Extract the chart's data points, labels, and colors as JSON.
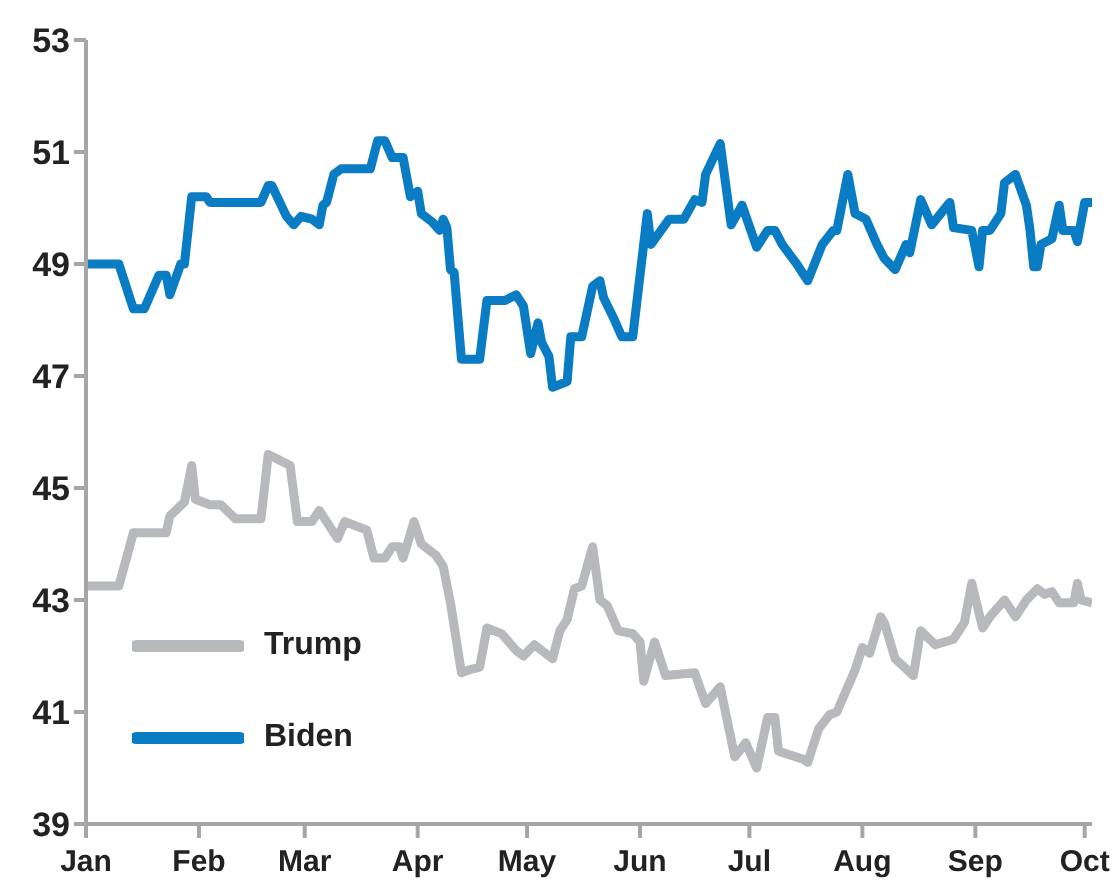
{
  "chart_data": {
    "type": "line",
    "xlim": [
      "--01-01",
      "--10-03"
    ],
    "ylim": [
      39,
      53
    ],
    "yticks": [
      39,
      41,
      43,
      45,
      47,
      49,
      51,
      53
    ],
    "xticks": [
      {
        "value": "--01-01",
        "label": "Jan"
      },
      {
        "value": "--02-01",
        "label": "Feb"
      },
      {
        "value": "--03-01",
        "label": "Mar"
      },
      {
        "value": "--04-01",
        "label": "Apr"
      },
      {
        "value": "--05-01",
        "label": "May"
      },
      {
        "value": "--06-01",
        "label": "Jun"
      },
      {
        "value": "--07-01",
        "label": "Jul"
      },
      {
        "value": "--08-01",
        "label": "Aug"
      },
      {
        "value": "--09-01",
        "label": "Sep"
      },
      {
        "value": "--10-01",
        "label": "Oct"
      }
    ],
    "grid": false,
    "legend": "bottom left",
    "line_style": "solid",
    "series": [
      {
        "name": "Trump",
        "color": "#b8b9bc",
        "x": [
          "--01-01",
          "--01-10",
          "--01-14",
          "--01-23",
          "--01-24",
          "--01-28",
          "--01-30",
          "--01-31",
          "--02-04",
          "--02-07",
          "--02-11",
          "--02-18",
          "--02-20",
          "--02-26",
          "--02-28",
          "--03-03",
          "--03-05",
          "--03-07",
          "--03-10",
          "--03-12",
          "--03-18",
          "--03-20",
          "--03-23",
          "--03-25",
          "--03-27",
          "--03-28",
          "--03-31",
          "--04-02",
          "--04-06",
          "--04-08",
          "--04-10",
          "--04-13",
          "--04-15",
          "--04-18",
          "--04-20",
          "--04-24",
          "--04-28",
          "--04-30",
          "--05-03",
          "--05-08",
          "--05-10",
          "--05-12",
          "--05-14",
          "--05-16",
          "--05-19",
          "--05-21",
          "--05-23",
          "--05-26",
          "--05-30",
          "--06-01",
          "--06-02",
          "--06-05",
          "--06-08",
          "--06-16",
          "--06-19",
          "--06-23",
          "--06-27",
          "--06-30",
          "--07-03",
          "--07-06",
          "--07-08",
          "--07-09",
          "--07-16",
          "--07-17",
          "--07-20",
          "--07-23",
          "--07-25",
          "--07-30",
          "--08-01",
          "--08-03",
          "--08-06",
          "--08-07",
          "--08-10",
          "--08-15",
          "--08-17",
          "--08-21",
          "--08-26",
          "--08-29",
          "--08-31",
          "--09-03",
          "--09-05",
          "--09-09",
          "--09-12",
          "--09-15",
          "--09-18",
          "--09-20",
          "--09-22",
          "--09-24",
          "--09-28",
          "--09-29",
          "--09-30",
          "--10-03"
        ],
        "values": [
          43.25,
          43.25,
          44.2,
          44.2,
          44.5,
          44.75,
          45.4,
          44.8,
          44.7,
          44.7,
          44.45,
          44.45,
          45.6,
          45.4,
          44.4,
          44.4,
          44.6,
          44.4,
          44.1,
          44.4,
          44.25,
          43.75,
          43.75,
          43.95,
          43.95,
          43.75,
          44.4,
          44.0,
          43.8,
          43.6,
          42.95,
          41.7,
          41.75,
          41.8,
          42.5,
          42.4,
          42.1,
          42.0,
          42.2,
          41.95,
          42.45,
          42.65,
          43.2,
          43.25,
          43.95,
          43.0,
          42.9,
          42.45,
          42.4,
          42.25,
          41.55,
          42.25,
          41.65,
          41.7,
          41.15,
          41.45,
          40.2,
          40.45,
          40.0,
          40.9,
          40.9,
          40.3,
          40.15,
          40.1,
          40.7,
          40.95,
          41.0,
          41.75,
          42.15,
          42.05,
          42.7,
          42.6,
          41.95,
          41.65,
          42.45,
          42.2,
          42.3,
          42.6,
          43.3,
          42.5,
          42.7,
          43.0,
          42.7,
          43.0,
          43.2,
          43.1,
          43.15,
          42.95,
          42.95,
          43.3,
          43.0,
          42.95
        ]
      },
      {
        "name": "Biden",
        "color": "#0a7cc4",
        "x": [
          "--01-01",
          "--01-10",
          "--01-14",
          "--01-17",
          "--01-21",
          "--01-23",
          "--01-24",
          "--01-27",
          "--01-28",
          "--01-30",
          "--02-03",
          "--02-04",
          "--02-18",
          "--02-20",
          "--02-21",
          "--02-25",
          "--02-27",
          "--02-29",
          "--03-03",
          "--03-05",
          "--03-06",
          "--03-07",
          "--03-09",
          "--03-11",
          "--03-19",
          "--03-21",
          "--03-23",
          "--03-25",
          "--03-28",
          "--03-30",
          "--04-01",
          "--04-02",
          "--04-05",
          "--04-07",
          "--04-08",
          "--04-09",
          "--04-10",
          "--04-11",
          "--04-13",
          "--04-18",
          "--04-20",
          "--04-25",
          "--04-28",
          "--04-30",
          "--05-02",
          "--05-04",
          "--05-05",
          "--05-07",
          "--05-08",
          "--05-12",
          "--05-13",
          "--05-16",
          "--05-19",
          "--05-21",
          "--05-22",
          "--05-25",
          "--05-27",
          "--05-30",
          "--06-03",
          "--06-04",
          "--06-09",
          "--06-13",
          "--06-16",
          "--06-18",
          "--06-19",
          "--06-23",
          "--06-26",
          "--06-29",
          "--07-03",
          "--07-06",
          "--07-08",
          "--07-10",
          "--07-14",
          "--07-17",
          "--07-21",
          "--07-24",
          "--07-25",
          "--07-28",
          "--07-30",
          "--08-02",
          "--08-05",
          "--08-07",
          "--08-10",
          "--08-13",
          "--08-14",
          "--08-17",
          "--08-20",
          "--08-25",
          "--08-26",
          "--08-31",
          "--09-02",
          "--09-03",
          "--09-05",
          "--09-08",
          "--09-09",
          "--09-12",
          "--09-15",
          "--09-16",
          "--09-17",
          "--09-18",
          "--09-19",
          "--09-22",
          "--09-24",
          "--09-25",
          "--09-28",
          "--09-29",
          "--10-01",
          "--10-03"
        ],
        "values": [
          49.0,
          49.0,
          48.2,
          48.2,
          48.8,
          48.8,
          48.45,
          49.0,
          49.0,
          50.2,
          50.2,
          50.1,
          50.1,
          50.4,
          50.4,
          49.85,
          49.7,
          49.85,
          49.8,
          49.7,
          50.05,
          50.1,
          50.6,
          50.7,
          50.7,
          51.2,
          51.2,
          50.9,
          50.9,
          50.2,
          50.3,
          49.9,
          49.75,
          49.6,
          49.8,
          49.65,
          48.9,
          48.85,
          47.3,
          47.3,
          48.35,
          48.35,
          48.45,
          48.25,
          47.4,
          47.95,
          47.6,
          47.35,
          46.8,
          46.9,
          47.7,
          47.7,
          48.6,
          48.7,
          48.4,
          48.0,
          47.7,
          47.7,
          49.9,
          49.35,
          49.8,
          49.8,
          50.15,
          50.1,
          50.6,
          51.15,
          49.7,
          50.05,
          49.3,
          49.6,
          49.6,
          49.35,
          49.0,
          48.7,
          49.35,
          49.6,
          49.6,
          50.6,
          49.9,
          49.8,
          49.35,
          49.1,
          48.9,
          49.35,
          49.2,
          50.15,
          49.7,
          50.1,
          49.65,
          49.6,
          48.95,
          49.6,
          49.6,
          49.9,
          50.45,
          50.6,
          50.05,
          49.6,
          48.95,
          48.95,
          49.35,
          49.45,
          50.05,
          49.6,
          49.6,
          49.4,
          50.1,
          50.1
        ]
      }
    ]
  }
}
